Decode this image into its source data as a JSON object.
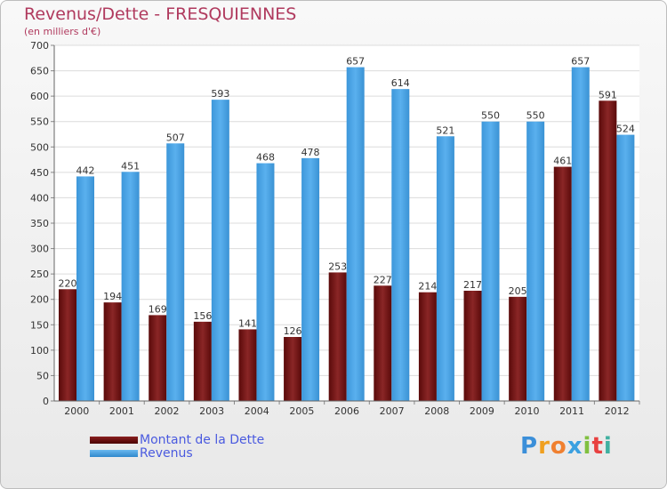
{
  "chart_data": {
    "type": "bar",
    "title": "Revenus/Dette - FRESQUIENNES",
    "subtitle": "(en milliers d'€)",
    "categories": [
      "2000",
      "2001",
      "2002",
      "2003",
      "2004",
      "2005",
      "2006",
      "2007",
      "2008",
      "2009",
      "2010",
      "2011",
      "2012"
    ],
    "series": [
      {
        "name": "Montant de la Dette",
        "color": "#7a1c1c",
        "values": [
          220,
          194,
          169,
          156,
          141,
          126,
          253,
          227,
          214,
          217,
          205,
          461,
          591
        ]
      },
      {
        "name": "Revenus",
        "color": "#4ea6e6",
        "values": [
          442,
          451,
          507,
          593,
          468,
          478,
          657,
          614,
          521,
          550,
          550,
          657,
          524
        ]
      }
    ],
    "ylim": [
      0,
      700
    ],
    "yticks": [
      0,
      50,
      100,
      150,
      200,
      250,
      300,
      350,
      400,
      450,
      500,
      550,
      600,
      650,
      700
    ],
    "grid": true,
    "legend": "bottom-left"
  },
  "logo": {
    "text": "Proxiti",
    "letters": [
      "P",
      "r",
      "o",
      "x",
      "i",
      "t",
      "i"
    ]
  }
}
